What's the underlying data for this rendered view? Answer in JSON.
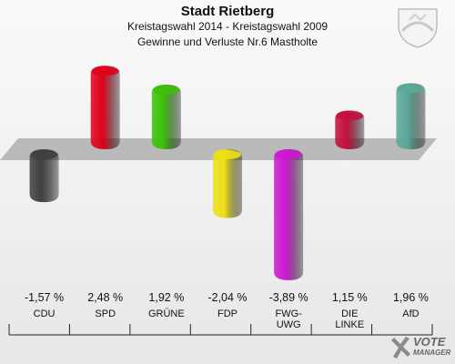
{
  "header": {
    "title": "Stadt Rietberg",
    "subtitle": "Kreistagswahl 2014 - Kreistagswahl 2009",
    "subtitle2": "Gewinne und Verluste Nr.6 Mastholte"
  },
  "branding": {
    "logo_line1": "VOTE",
    "logo_line2": "MANAGER",
    "crest_icon": "coat-of-arms-icon"
  },
  "chart_data": {
    "type": "bar",
    "title": "Stadt Rietberg",
    "subtitle": "Kreistagswahl 2014 - Kreistagswahl 2009 / Gewinne und Verluste Nr.6 Mastholte",
    "categories": [
      "CDU",
      "SPD",
      "GRÜNE",
      "FDP",
      "FWG-\nUWG",
      "DIE\nLINKE",
      "AfD"
    ],
    "values": [
      -1.57,
      2.48,
      1.92,
      -2.04,
      -3.89,
      1.15,
      1.96
    ],
    "value_labels": [
      "-1,57 %",
      "2,48 %",
      "1,92 %",
      "-2,04 %",
      "-3,89 %",
      "1,15 %",
      "1,96 %"
    ],
    "colors": [
      "#404040",
      "#e2001a",
      "#3cc00a",
      "#ece015",
      "#cc1ad0",
      "#c41040",
      "#5aa898"
    ],
    "ylim": [
      -4,
      3
    ],
    "grid": false,
    "legend": "none",
    "xlabel": "",
    "ylabel": ""
  }
}
